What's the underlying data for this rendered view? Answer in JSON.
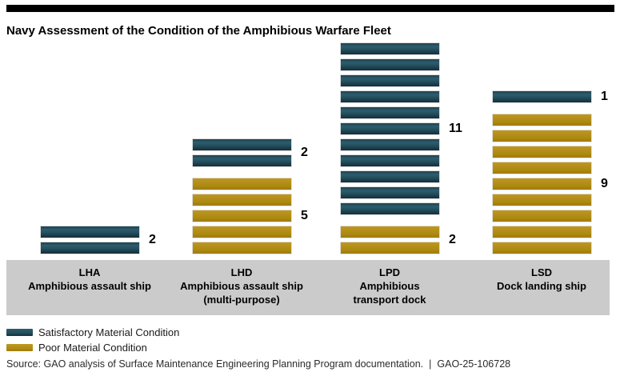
{
  "header": {
    "title": "Navy Assessment of the Condition of the Amphibious Warfare Fleet"
  },
  "chart_data": {
    "type": "bar",
    "subtype": "unit-stacked-bar",
    "unit": "ships",
    "categories": [
      {
        "code": "LHA",
        "name_lines": [
          "Amphibious assault ship"
        ],
        "satisfactory": 2,
        "poor": 0
      },
      {
        "code": "LHD",
        "name_lines": [
          "Amphibious assault ship",
          "(multi-purpose)"
        ],
        "satisfactory": 2,
        "poor": 5
      },
      {
        "code": "LPD",
        "name_lines": [
          "Amphibious",
          "transport dock"
        ],
        "satisfactory": 11,
        "poor": 2
      },
      {
        "code": "LSD",
        "name_lines": [
          "Dock landing ship"
        ],
        "satisfactory": 1,
        "poor": 9
      }
    ],
    "series": [
      {
        "name": "Satisfactory Material Condition",
        "key": "satisfactory",
        "color": "#24505F",
        "values": [
          2,
          2,
          11,
          1
        ]
      },
      {
        "name": "Poor Material Condition",
        "key": "poor",
        "color": "#B18C15",
        "values": [
          0,
          5,
          2,
          9
        ]
      }
    ],
    "title": "Navy Assessment of the Condition of the Amphibious Warfare Fleet",
    "xlabel": "",
    "ylabel": "",
    "grid": false,
    "legend_position": "bottom-left"
  },
  "legend": {
    "items": [
      {
        "key": "satisfactory",
        "label": "Satisfactory Material Condition",
        "color": "#24505F"
      },
      {
        "key": "poor",
        "label": "Poor Material Condition",
        "color": "#B18C15"
      }
    ]
  },
  "footer": {
    "source": "Source: GAO analysis of Surface Maintenance Engineering Planning Program documentation.",
    "separator": "|",
    "report_id": "GAO-25-106728"
  },
  "colors": {
    "satisfactory": "#24505F",
    "poor": "#B18C15",
    "band": "#CBCBCB",
    "title_rule": "#000000"
  }
}
